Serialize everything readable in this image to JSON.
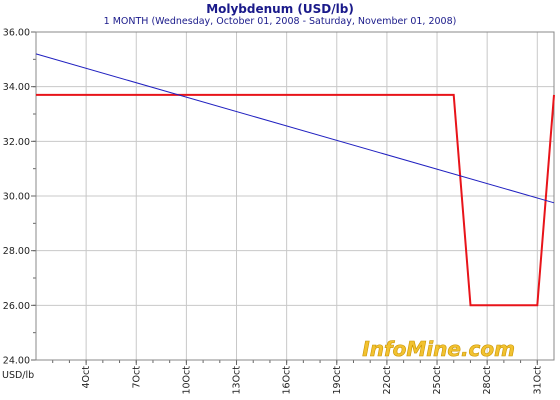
{
  "chart_data": {
    "type": "line",
    "title": "Molybdenum (USD/lb)",
    "subtitle": "1 MONTH (Wednesday, October 01, 2008  -  Saturday, November 01, 2008)",
    "ylabel": "USD/lb",
    "xlabel": "",
    "ylim": [
      24,
      36
    ],
    "xlim": [
      "2008-10-01",
      "2008-11-01"
    ],
    "yticks": [
      "24.00",
      "26.00",
      "28.00",
      "30.00",
      "32.00",
      "34.00",
      "36.00"
    ],
    "xticks": [
      {
        "label": "4Oct",
        "date": "2008-10-04"
      },
      {
        "label": "7Oct",
        "date": "2008-10-07"
      },
      {
        "label": "10Oct",
        "date": "2008-10-10"
      },
      {
        "label": "13Oct",
        "date": "2008-10-13"
      },
      {
        "label": "16Oct",
        "date": "2008-10-16"
      },
      {
        "label": "19Oct",
        "date": "2008-10-19"
      },
      {
        "label": "22Oct",
        "date": "2008-10-22"
      },
      {
        "label": "25Oct",
        "date": "2008-10-25"
      },
      {
        "label": "28Oct",
        "date": "2008-10-28"
      },
      {
        "label": "31Oct",
        "date": "2008-10-31"
      }
    ],
    "grid": true,
    "series": [
      {
        "color": "#e8141a",
        "points": [
          {
            "x": "2008-10-01",
            "y": 33.7
          },
          {
            "x": "2008-10-26",
            "y": 33.7
          },
          {
            "x": "2008-10-27",
            "y": 26.0
          },
          {
            "x": "2008-10-31",
            "y": 26.0
          },
          {
            "x": "2008-11-01",
            "y": 33.7
          }
        ]
      },
      {
        "color": "#2020c0",
        "points": [
          {
            "x": "2008-10-01",
            "y": 35.2
          },
          {
            "x": "2008-11-01",
            "y": 29.75
          }
        ]
      }
    ],
    "watermark": "InfoMine.com"
  }
}
